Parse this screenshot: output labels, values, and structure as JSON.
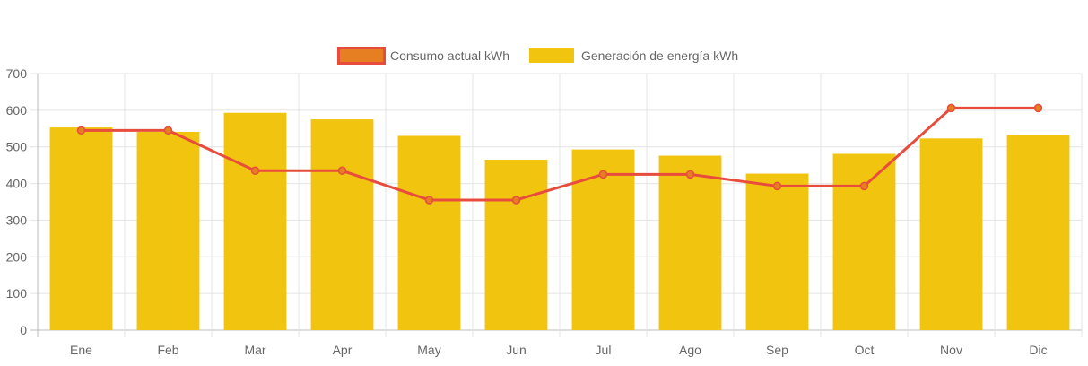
{
  "chart_data": {
    "type": "bar",
    "title": "",
    "xlabel": "",
    "ylabel": "",
    "categories": [
      "Ene",
      "Feb",
      "Mar",
      "Apr",
      "May",
      "Jun",
      "Jul",
      "Ago",
      "Sep",
      "Oct",
      "Nov",
      "Dic"
    ],
    "ylim": [
      0,
      700
    ],
    "yticks": [
      0,
      100,
      200,
      300,
      400,
      500,
      600,
      700
    ],
    "grid": true,
    "legend_position": "top-center",
    "series": [
      {
        "name": "Consumo actual kWh",
        "type": "line",
        "color": "#e74c3c",
        "fill": "#e67e22",
        "values": [
          545,
          545,
          435,
          435,
          355,
          355,
          425,
          425,
          393,
          393,
          606,
          606
        ]
      },
      {
        "name": "Generación de energía kWh",
        "type": "bar",
        "color": "#f1c40f",
        "values": [
          553,
          541,
          593,
          575,
          530,
          465,
          493,
          476,
          427,
          481,
          523,
          533
        ]
      }
    ]
  }
}
